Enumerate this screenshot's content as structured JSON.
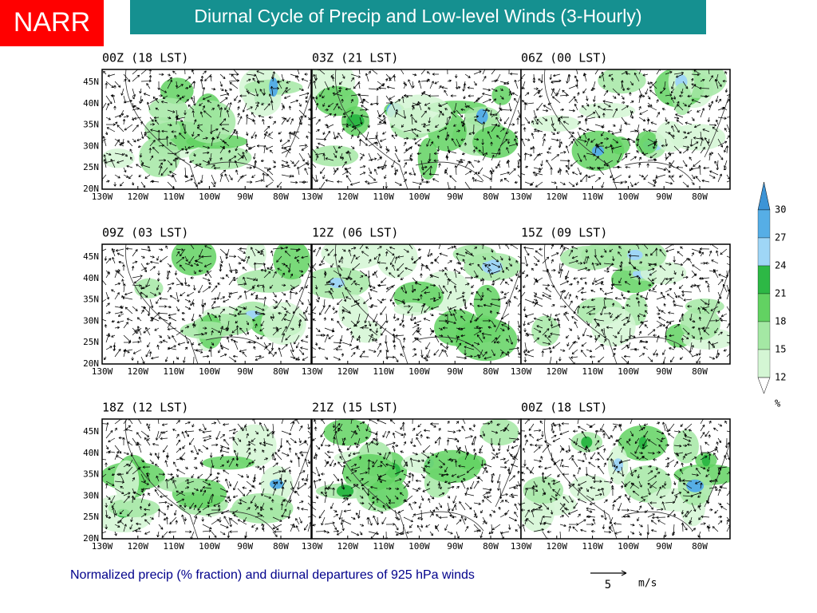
{
  "header": {
    "badge": "NARR",
    "title": "Diurnal Cycle of Precip and Low-level Winds (3-Hourly)"
  },
  "panels": [
    {
      "title": "00Z (18 LST)"
    },
    {
      "title": "03Z (21 LST)"
    },
    {
      "title": "06Z (00 LST)"
    },
    {
      "title": "09Z (03 LST)"
    },
    {
      "title": "12Z (06 LST)"
    },
    {
      "title": "15Z (09 LST)"
    },
    {
      "title": "18Z (12 LST)"
    },
    {
      "title": "21Z (15 LST)"
    },
    {
      "title": "00Z (18 LST)"
    }
  ],
  "lat_labels": [
    "45N",
    "40N",
    "35N",
    "30N",
    "25N",
    "20N"
  ],
  "lon_labels": [
    "130W",
    "120W",
    "110W",
    "100W",
    "90W",
    "80W"
  ],
  "colorbar": {
    "labels": [
      "30",
      "27",
      "24",
      "21",
      "18",
      "15",
      "12"
    ],
    "unit": "%",
    "colors": [
      "#3d94d6",
      "#56aee6",
      "#9fd6f6",
      "#2db845",
      "#62d262",
      "#a4e8a4",
      "#d4f6d4",
      "#ffffff"
    ]
  },
  "caption": "Normalized precip (% fraction) and diurnal departures of 925 hPa winds",
  "reference_vector": {
    "value": "5",
    "unit": "m/s"
  }
}
